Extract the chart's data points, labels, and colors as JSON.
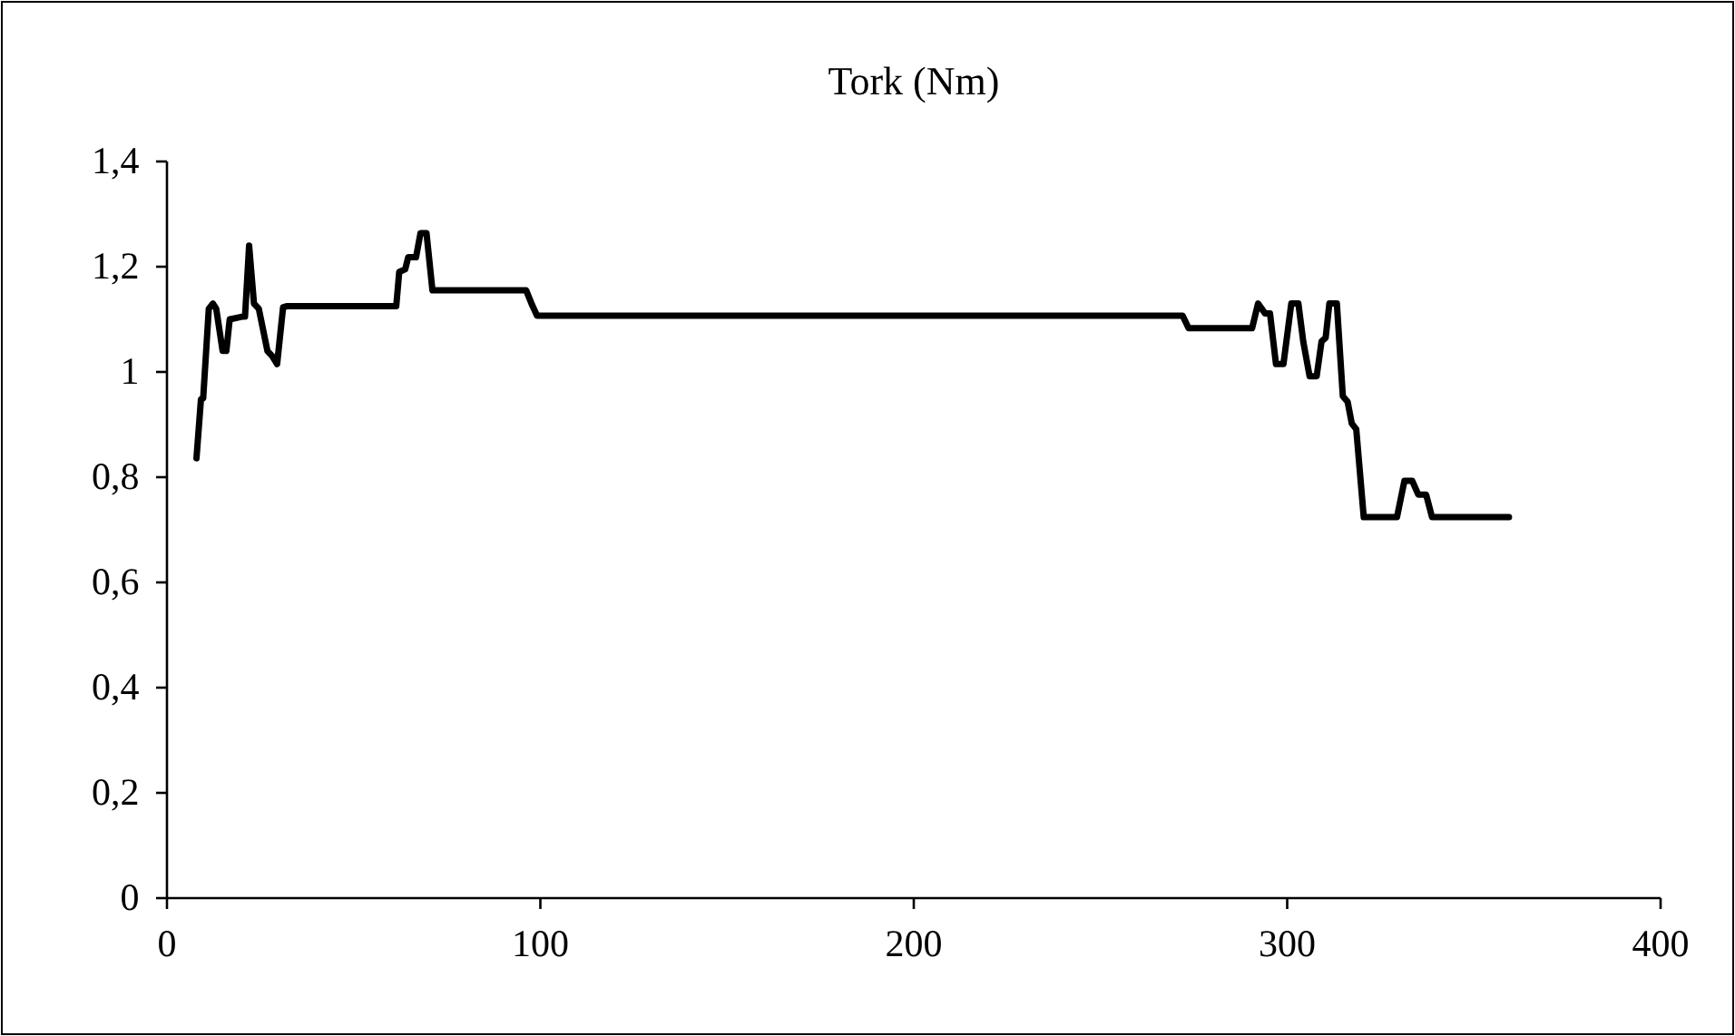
{
  "chart_data": {
    "type": "line",
    "title": "Tork (Nm)",
    "xlim": [
      0,
      400
    ],
    "xticks": [
      0,
      100,
      200,
      300,
      400
    ],
    "ylim": [
      0,
      1.4
    ],
    "yticks": [
      0,
      {
        "value": 0.2,
        "label": "0,2"
      },
      {
        "value": 0.4,
        "label": "0,4"
      },
      {
        "value": 0.6,
        "label": "0,6"
      },
      {
        "value": 0.8,
        "label": "0,8"
      },
      {
        "value": 1,
        "label": "1"
      },
      {
        "value": 1.2,
        "label": "1,2"
      },
      {
        "value": 1.4,
        "label": "1,4"
      }
    ],
    "grid": false,
    "marker": "none",
    "line_style": "solid",
    "series": [
      {
        "color": "#000000",
        "x": [
          7.9,
          9.1,
          9.7,
          11.2,
          12.3,
          13.2,
          14.9,
          15.9,
          16.8,
          20.1,
          20.9,
          22.0,
          23.3,
          24.6,
          26.9,
          28.2,
          29.5,
          31.1,
          32.2,
          61.4,
          62.2,
          63.8,
          64.6,
          66.7,
          67.9,
          69.5,
          71.1,
          96.2,
          97.8,
          99.1,
          272,
          273.6,
          290.6,
          292.2,
          294.1,
          295.4,
          297.0,
          299.0,
          301.1,
          303,
          304.3,
          306,
          307.9,
          309.2,
          310.3,
          311.3,
          313.3,
          314.9,
          316.2,
          317.3,
          318.5,
          320.5,
          329.4,
          331.4,
          333.5,
          335.1,
          337.2,
          338.8,
          359.4
        ],
        "values": [
          0.836,
          0.948,
          0.95,
          1.12,
          1.13,
          1.12,
          1.04,
          1.04,
          1.1,
          1.105,
          1.105,
          1.24,
          1.13,
          1.12,
          1.04,
          1.03,
          1.015,
          1.123,
          1.125,
          1.125,
          1.19,
          1.195,
          1.218,
          1.218,
          1.264,
          1.264,
          1.155,
          1.155,
          1.127,
          1.107,
          1.107,
          1.083,
          1.083,
          1.13,
          1.111,
          1.111,
          1.015,
          1.015,
          1.13,
          1.13,
          1.058,
          0.992,
          0.992,
          1.058,
          1.065,
          1.13,
          1.13,
          0.954,
          0.943,
          0.902,
          0.891,
          0.724,
          0.724,
          0.793,
          0.793,
          0.767,
          0.767,
          0.724,
          0.724
        ]
      }
    ]
  }
}
